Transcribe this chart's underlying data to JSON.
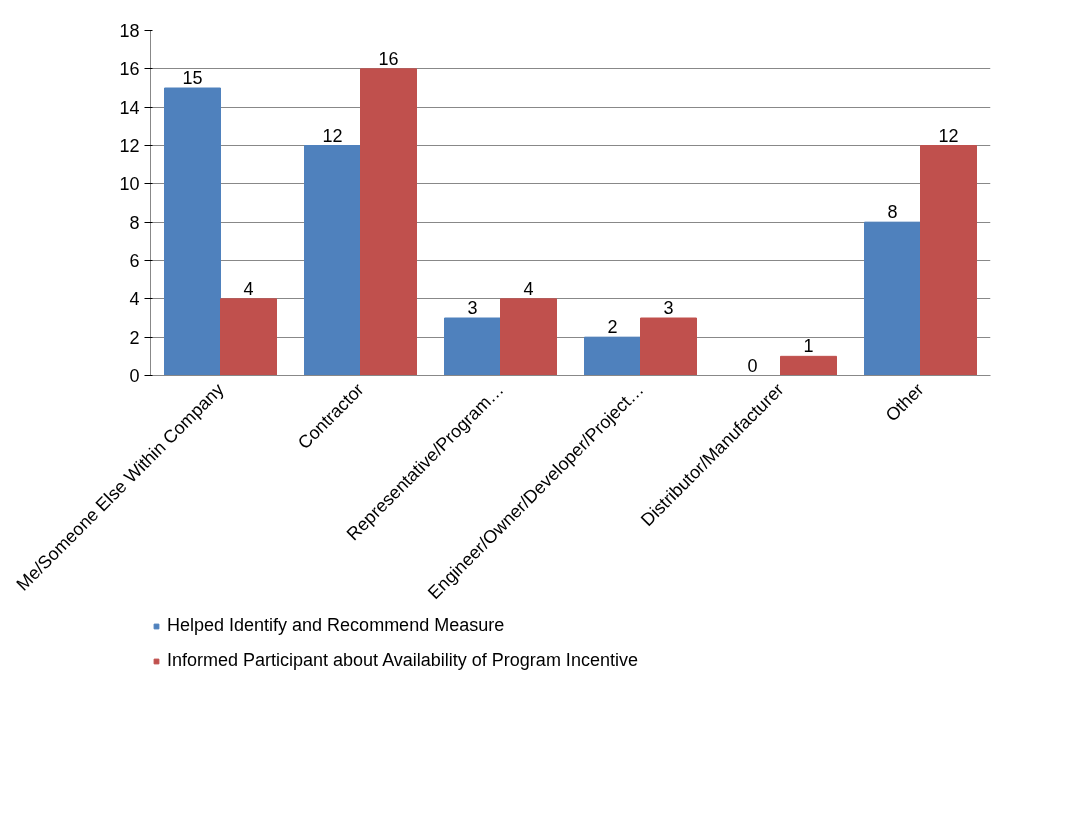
{
  "chart_data": {
    "type": "bar",
    "categories": [
      "Me/Someone Else Within Company",
      "Contractor",
      "Representative/Program…",
      "Engineer/Owner/Developer/Project…",
      "Distributor/Manufacturer",
      "Other"
    ],
    "series": [
      {
        "name": "Helped Identify and Recommend Measure",
        "color": "#4f81bd",
        "values": [
          15,
          12,
          3,
          2,
          0,
          8
        ]
      },
      {
        "name": "Informed Participant about Availability of Program Incentive",
        "color": "#c0504d",
        "values": [
          4,
          16,
          4,
          3,
          1,
          12
        ]
      }
    ],
    "ylim": [
      0,
      18
    ],
    "yticks": [
      0,
      2,
      4,
      6,
      8,
      10,
      12,
      14,
      16,
      18
    ],
    "grid": "y",
    "legend": "bottom",
    "data_labels": true
  }
}
